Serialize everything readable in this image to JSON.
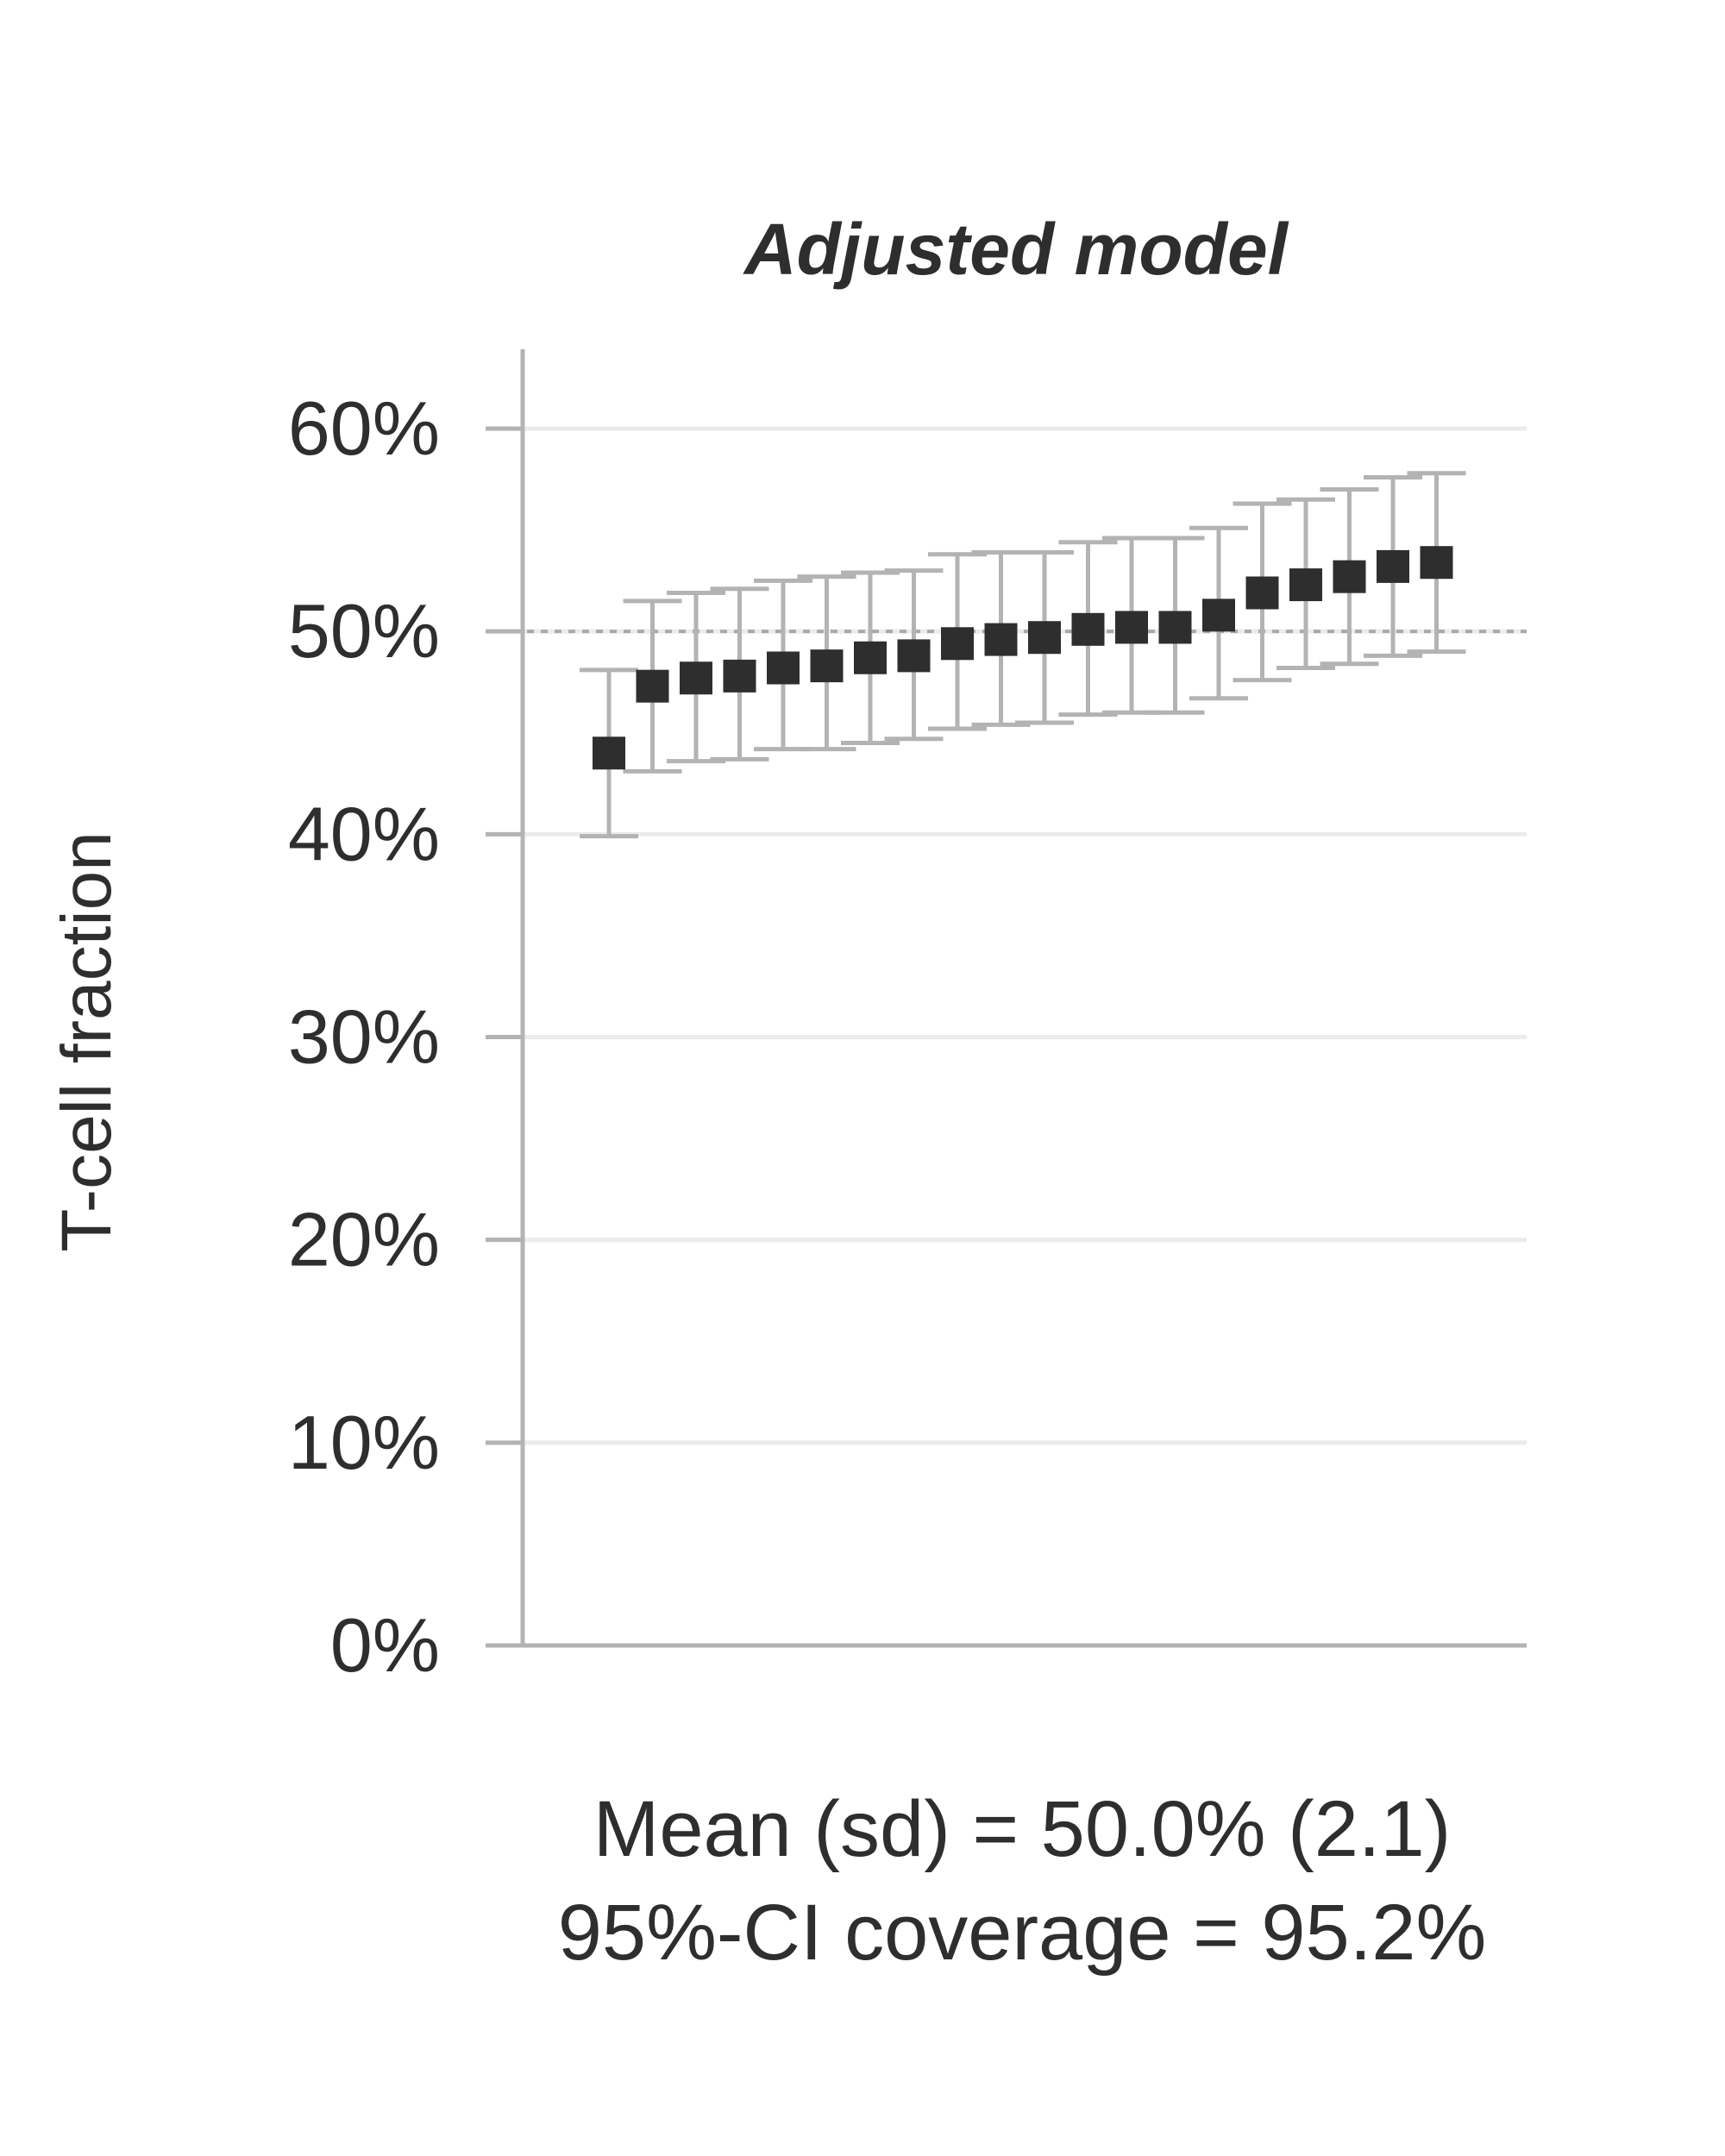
{
  "chart_data": {
    "type": "scatter",
    "title": "Adjusted model",
    "ylabel": "T-cell fraction",
    "xlabel": "",
    "ylim": [
      0,
      60
    ],
    "yticks": [
      0,
      10,
      20,
      30,
      40,
      50,
      60
    ],
    "ytick_labels": [
      "0%",
      "10%",
      "20%",
      "30%",
      "40%",
      "50%",
      "60%"
    ],
    "reference_line": 50,
    "grid": "horizontal",
    "colors": {
      "point": "#2e2e2e",
      "errorbar": "#b3b3b3",
      "grid": "#ebebeb",
      "axis": "#b3b3b3",
      "reference": "#a9a9a9"
    },
    "series": [
      {
        "estimate": [
          44.0,
          47.3,
          47.7,
          47.8,
          48.2,
          48.3,
          48.7,
          48.8,
          49.4,
          49.6,
          49.7,
          50.1,
          50.2,
          50.2,
          50.8,
          51.9,
          52.3,
          52.7,
          53.2,
          53.4
        ],
        "lower": [
          39.9,
          43.1,
          43.6,
          43.7,
          44.2,
          44.2,
          44.5,
          44.7,
          45.2,
          45.4,
          45.5,
          45.9,
          46.0,
          46.0,
          46.7,
          47.6,
          48.2,
          48.4,
          48.8,
          49.0
        ],
        "upper": [
          48.1,
          51.5,
          51.9,
          52.1,
          52.5,
          52.7,
          52.9,
          53.0,
          53.8,
          53.9,
          53.9,
          54.4,
          54.6,
          54.6,
          55.1,
          56.3,
          56.5,
          57.0,
          57.6,
          57.8
        ]
      }
    ],
    "annotations": [
      "Mean (sd) = 50.0% (2.1)",
      "95%-CI coverage = 95.2%"
    ]
  }
}
